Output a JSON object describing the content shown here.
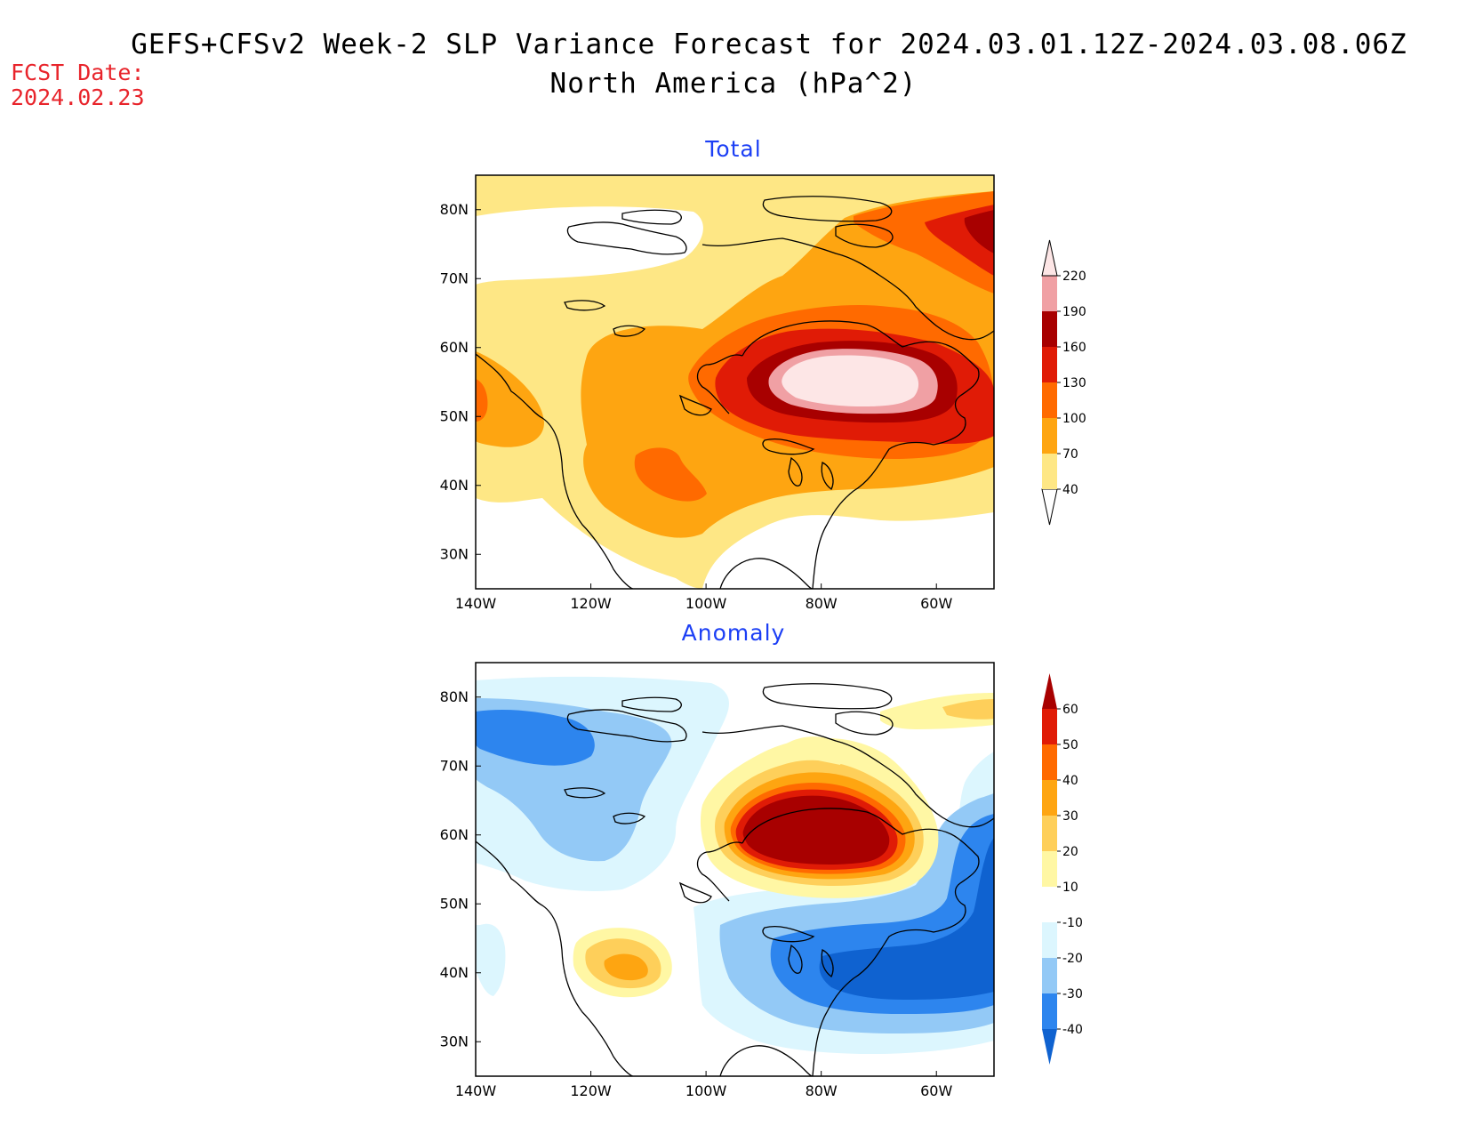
{
  "header": {
    "title": "GEFS+CFSv2 Week-2 SLP Variance Forecast for 2024.03.01.12Z-2024.03.08.06Z",
    "subtitle": "North America (hPa^2)",
    "fcst_label": "FCST Date:",
    "fcst_date": "2024.02.23"
  },
  "axes": {
    "lat_labels": [
      "80N",
      "70N",
      "60N",
      "50N",
      "40N",
      "30N"
    ],
    "lon_labels": [
      "140W",
      "120W",
      "100W",
      "80W",
      "60W"
    ]
  },
  "panels": [
    {
      "id": "total",
      "title": "Total",
      "colorbar": {
        "levels": [
          "40",
          "70",
          "100",
          "130",
          "160",
          "190",
          "220"
        ],
        "colors": [
          "#fee785",
          "#fea511",
          "#ff6a00",
          "#e01b06",
          "#a80000",
          "#f0a0a4",
          "#fde6e6"
        ]
      }
    },
    {
      "id": "anomaly",
      "title": "Anomaly",
      "colorbar": {
        "levels": [
          "-40",
          "-30",
          "-20",
          "-10",
          "10",
          "20",
          "30",
          "40",
          "50",
          "60"
        ],
        "colors": [
          "#0f62d0",
          "#2d85ee",
          "#93c9f6",
          "#dcf6fe",
          "#ffffff",
          "#fff7a4",
          "#fecf5a",
          "#fea511",
          "#ff6a00",
          "#e01b06",
          "#a80000"
        ]
      }
    }
  ]
}
